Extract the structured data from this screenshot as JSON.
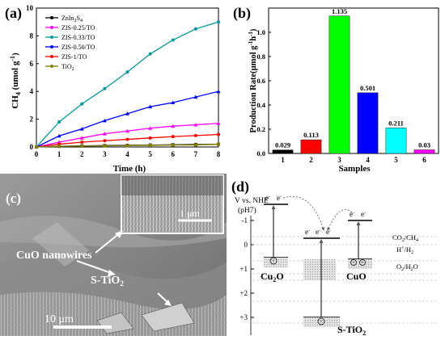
{
  "panel_a": {
    "label": "(a)",
    "chart_data": {
      "type": "line",
      "xlabel": "Time (h)",
      "ylabel_main": "CH",
      "ylabel_sub": "4",
      "ylabel_unit": " (umol g",
      "ylabel_sup": "-1",
      "ylabel_close": ")",
      "x": [
        0,
        1,
        2,
        3,
        4,
        5,
        6,
        7,
        8
      ],
      "xlim": [
        0,
        8
      ],
      "ylim": [
        0,
        10
      ],
      "xticks": [
        "0",
        "1",
        "2",
        "3",
        "4",
        "5",
        "6",
        "7",
        "8"
      ],
      "yticks": [
        "0",
        "2",
        "4",
        "6",
        "8",
        "10"
      ],
      "legend_position": "top-left",
      "series": [
        {
          "name": "ZnIn",
          "name_sub": "2",
          "name_rest": "S",
          "name_sub2": "4",
          "color": "#000000",
          "marker": "square",
          "values": [
            0,
            0.05,
            0.08,
            0.1,
            0.12,
            0.14,
            0.16,
            0.18,
            0.2
          ]
        },
        {
          "name": "ZIS-0.25/TO",
          "color": "#ff00ff",
          "marker": "triangle",
          "values": [
            0,
            0.35,
            0.65,
            0.95,
            1.15,
            1.35,
            1.5,
            1.6,
            1.7
          ]
        },
        {
          "name": "ZIS-0.33/TO",
          "color": "#009999",
          "marker": "circle",
          "values": [
            0,
            1.8,
            3.1,
            4.2,
            5.4,
            6.7,
            7.7,
            8.5,
            9.0
          ]
        },
        {
          "name": "ZIS-0.50/TO",
          "color": "#0000ff",
          "marker": "triangle",
          "values": [
            0,
            0.8,
            1.3,
            1.9,
            2.4,
            2.9,
            3.2,
            3.6,
            4.0
          ]
        },
        {
          "name": "ZIS-1/TO",
          "color": "#ff0000",
          "marker": "circle",
          "values": [
            0,
            0.2,
            0.35,
            0.45,
            0.55,
            0.65,
            0.75,
            0.82,
            0.9
          ]
        },
        {
          "name": "TiO",
          "name_sub": "2",
          "color": "#808000",
          "marker": "square",
          "values": [
            0,
            0.05,
            0.07,
            0.08,
            0.1,
            0.12,
            0.14,
            0.15,
            0.2
          ]
        }
      ]
    }
  },
  "panel_b": {
    "label": "(b)",
    "chart_data": {
      "type": "bar",
      "xlabel": "Samples",
      "ylabel": "Production Rate(",
      "ylabel_mid": "μmol g",
      "ylabel_sup1": "-1",
      "ylabel_h": "h",
      "ylabel_sup2": "-1",
      "ylabel_close": ")",
      "categories": [
        "1",
        "2",
        "3",
        "4",
        "5",
        "6"
      ],
      "values": [
        0.029,
        0.113,
        1.135,
        0.501,
        0.211,
        0.03
      ],
      "value_labels": [
        "0.029",
        "0.113",
        "1.135",
        "0.501",
        "0.211",
        "0.03"
      ],
      "colors": [
        "#000000",
        "#ff0000",
        "#00ff00",
        "#0000ff",
        "#00ffff",
        "#ff00ff"
      ],
      "ylim": [
        0,
        1.2
      ],
      "yticks": [
        "0.0",
        "0.2",
        "0.4",
        "0.6",
        "0.8",
        "1.0"
      ]
    }
  },
  "panel_c": {
    "label": "(c)",
    "scale_small": "1 μm",
    "scale_large": "10 μm",
    "label_cuo": "CuO nanowires",
    "label_stio": "S-TiO",
    "label_stio_sub": "2"
  },
  "panel_d": {
    "label": "(d)",
    "axis_title_1": "V vs. NHE",
    "axis_title_2": "(pH7)",
    "yticks": [
      "-1",
      "0",
      "+1",
      "+2",
      "+3"
    ],
    "electron": "e",
    "electron_sup": "-",
    "hole": "+",
    "cu2o": "Cu",
    "cu2o_sub": "2",
    "cu2o_rest": "O",
    "stio": "S-TiO",
    "stio_sub": "2",
    "cuo": "CuO",
    "level_co2": "CO",
    "level_co2_sub": "2",
    "level_co2_rest": "/CH",
    "level_co2_sub2": "4",
    "level_h": "H",
    "level_h_sup": "+",
    "level_h_rest": "/H",
    "level_h_sub": "2",
    "level_o2": "O",
    "level_o2_sub": "2",
    "level_o2_rest": "/H",
    "level_o2_sub2": "2",
    "level_o2_end": "O"
  }
}
